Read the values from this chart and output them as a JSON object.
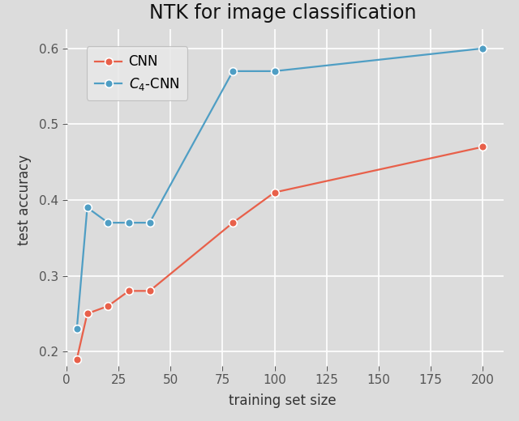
{
  "title": "NTK for image classification",
  "xlabel": "training set size",
  "ylabel": "test accuracy",
  "cnn": {
    "x": [
      5,
      10,
      20,
      30,
      40,
      80,
      100,
      200
    ],
    "y": [
      0.19,
      0.25,
      0.26,
      0.28,
      0.28,
      0.37,
      0.41,
      0.47
    ],
    "color": "#E8604A",
    "label": "CNN"
  },
  "c4cnn": {
    "x": [
      5,
      10,
      20,
      30,
      40,
      80,
      100,
      200
    ],
    "y": [
      0.23,
      0.39,
      0.37,
      0.37,
      0.37,
      0.57,
      0.57,
      0.6
    ],
    "color": "#4F9EC4",
    "label": "$\\mathit{C}_4$-CNN"
  },
  "xlim": [
    -2,
    210
  ],
  "ylim": [
    0.175,
    0.625
  ],
  "xticks": [
    0,
    25,
    50,
    75,
    100,
    125,
    150,
    175,
    200
  ],
  "yticks": [
    0.2,
    0.3,
    0.4,
    0.5,
    0.6
  ],
  "background_color": "#DCDCDC",
  "grid_color": "#FFFFFF",
  "title_fontsize": 17,
  "label_fontsize": 12,
  "tick_fontsize": 11,
  "legend_fontsize": 12,
  "marker": "o",
  "markersize": 7,
  "linewidth": 1.6
}
